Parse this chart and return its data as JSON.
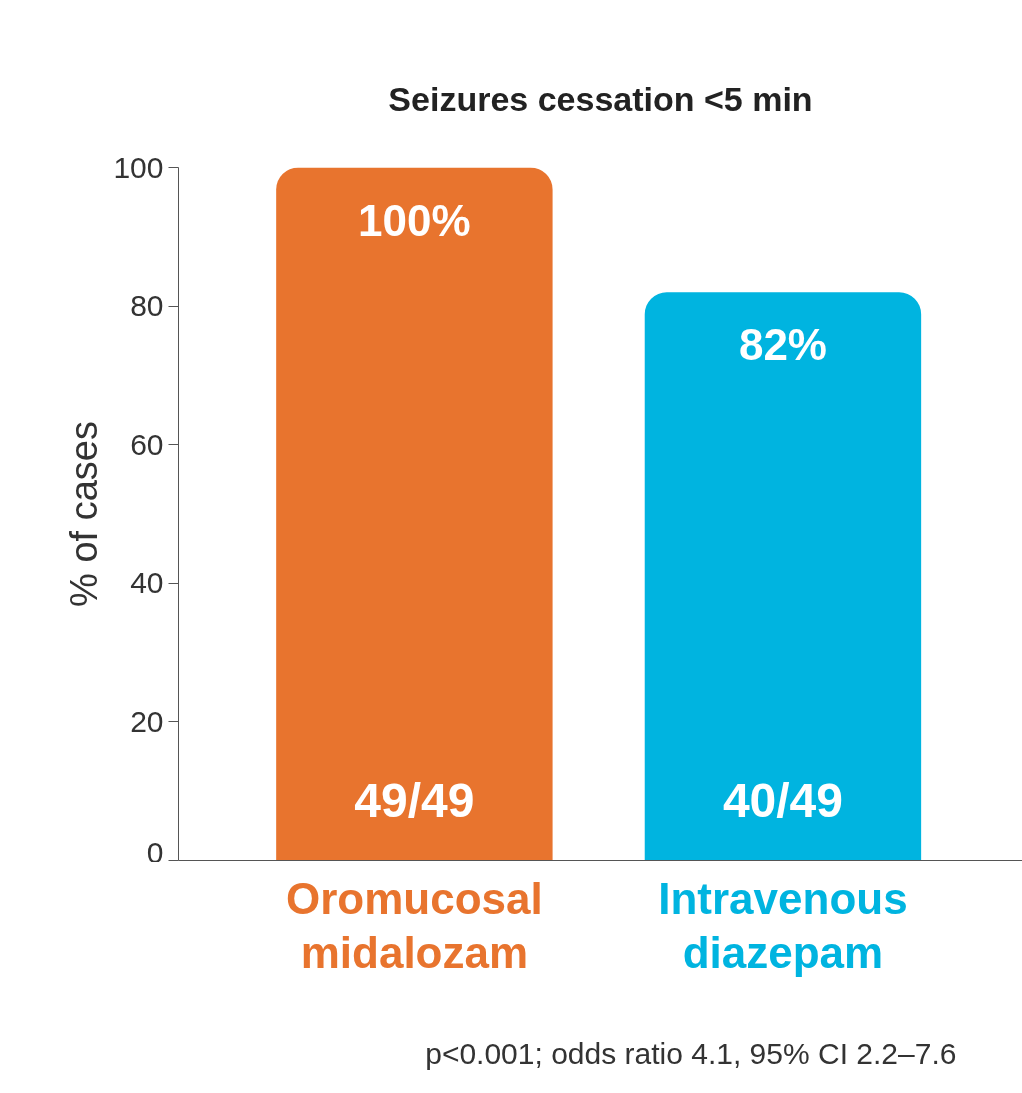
{
  "chart_data": {
    "type": "bar",
    "title": "Seizures cessation <5 min",
    "ylabel": "% of cases",
    "categories": [
      "Oromucosal\nmidalozam",
      "Intravenous\ndiazepam"
    ],
    "values": [
      100,
      82
    ],
    "colors": [
      "#e8742e",
      "#00b4e0"
    ],
    "value_labels": [
      "100%",
      "82%"
    ],
    "ylim": [
      0,
      100
    ],
    "yticks": [
      0,
      20,
      40,
      60,
      80,
      100
    ],
    "grid": false,
    "annotations": [
      "49/49",
      "40/49",
      "p<0.001; odds ratio 4.1, 95% CI 2.2–7.6"
    ]
  }
}
